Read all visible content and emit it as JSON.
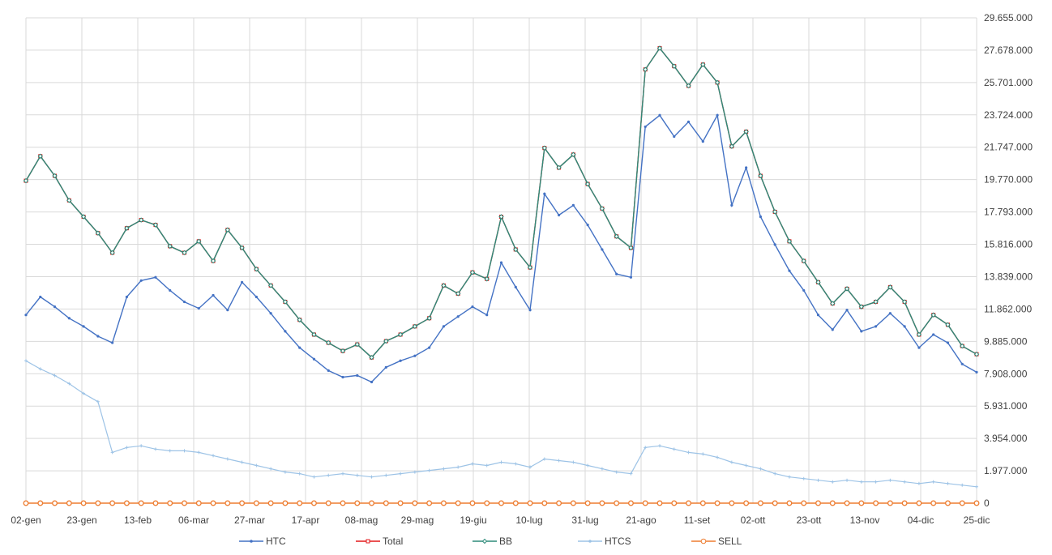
{
  "chart_data": {
    "type": "line",
    "title": "",
    "xlabel": "",
    "ylabel": "",
    "ylim": [
      0,
      29655000
    ],
    "y_axis_position": "right",
    "y_ticks": [
      0,
      1977000,
      3954000,
      5931000,
      7908000,
      9885000,
      11862000,
      13839000,
      15816000,
      17793000,
      19770000,
      21747000,
      23724000,
      25701000,
      27678000,
      29655000
    ],
    "y_tick_labels": [
      "0",
      "1.977.000",
      "3.954.000",
      "5.931.000",
      "7.908.000",
      "9.885.000",
      "11.862.000",
      "13.839.000",
      "15.816.000",
      "17.793.000",
      "19.770.000",
      "21.747.000",
      "23.724.000",
      "25.701.000",
      "27.678.000",
      "29.655.000"
    ],
    "x_tick_labels": [
      "02-gen",
      "23-gen",
      "13-feb",
      "06-mar",
      "27-mar",
      "17-apr",
      "08-mag",
      "29-mag",
      "19-giu",
      "10-lug",
      "31-lug",
      "21-ago",
      "11-set",
      "02-ott",
      "23-ott",
      "13-nov",
      "04-dic",
      "25-dic"
    ],
    "grid": true,
    "legend_position": "bottom",
    "colors": {
      "HTC": "#4472C4",
      "Total": "#E31A1C",
      "BB": "#2E8B7A",
      "HTCS": "#9DC3E6",
      "SELL": "#ED7D31",
      "grid": "#d9d9d9"
    },
    "series": [
      {
        "name": "HTC",
        "color": "#4472C4",
        "values": [
          11500000,
          12600000,
          12000000,
          11300000,
          10800000,
          10200000,
          9800000,
          12600000,
          13600000,
          13800000,
          13000000,
          12300000,
          11900000,
          12700000,
          11800000,
          13500000,
          12600000,
          11600000,
          10500000,
          9500000,
          8800000,
          8100000,
          7700000,
          7800000,
          7400000,
          8300000,
          8700000,
          9000000,
          9500000,
          10800000,
          11400000,
          12000000,
          11500000,
          14700000,
          13200000,
          11800000,
          18900000,
          17600000,
          18200000,
          17000000,
          15500000,
          14000000,
          13800000,
          23000000,
          23700000,
          22400000,
          23300000,
          22100000,
          23700000,
          18200000,
          20500000,
          17500000,
          15800000,
          14200000,
          13000000,
          11500000,
          10600000,
          11800000,
          10500000,
          10800000,
          11600000,
          10800000,
          9500000,
          10300000,
          9800000,
          8500000,
          8000000
        ]
      },
      {
        "name": "Total",
        "color": "#E31A1C",
        "values": [
          19700000,
          21200000,
          20000000,
          18500000,
          17500000,
          16500000,
          15300000,
          16800000,
          17300000,
          17000000,
          15700000,
          15300000,
          16000000,
          14800000,
          16700000,
          15600000,
          14300000,
          13300000,
          12300000,
          11200000,
          10300000,
          9800000,
          9300000,
          9700000,
          8900000,
          9900000,
          10300000,
          10800000,
          11300000,
          13300000,
          12800000,
          14100000,
          13700000,
          17500000,
          15500000,
          14400000,
          21700000,
          20500000,
          21300000,
          19500000,
          18000000,
          16300000,
          15600000,
          26500000,
          27800000,
          26700000,
          25500000,
          26800000,
          25700000,
          21800000,
          22700000,
          20000000,
          17800000,
          16000000,
          14800000,
          13500000,
          12200000,
          13100000,
          12000000,
          12300000,
          13200000,
          12300000,
          10300000,
          11500000,
          10900000,
          9600000,
          9100000
        ]
      },
      {
        "name": "BB",
        "color": "#2E8B7A",
        "values": [
          19700000,
          21200000,
          20000000,
          18500000,
          17500000,
          16500000,
          15300000,
          16800000,
          17300000,
          17000000,
          15700000,
          15300000,
          16000000,
          14800000,
          16700000,
          15600000,
          14300000,
          13300000,
          12300000,
          11200000,
          10300000,
          9800000,
          9300000,
          9700000,
          8900000,
          9900000,
          10300000,
          10800000,
          11300000,
          13300000,
          12800000,
          14100000,
          13700000,
          17500000,
          15500000,
          14400000,
          21700000,
          20500000,
          21300000,
          19500000,
          18000000,
          16300000,
          15600000,
          26500000,
          27800000,
          26700000,
          25500000,
          26800000,
          25700000,
          21800000,
          22700000,
          20000000,
          17800000,
          16000000,
          14800000,
          13500000,
          12200000,
          13100000,
          12000000,
          12300000,
          13200000,
          12300000,
          10300000,
          11500000,
          10900000,
          9600000,
          9100000
        ]
      },
      {
        "name": "HTCS",
        "color": "#9DC3E6",
        "values": [
          8700000,
          8200000,
          7800000,
          7300000,
          6700000,
          6200000,
          3100000,
          3400000,
          3500000,
          3300000,
          3200000,
          3200000,
          3100000,
          2900000,
          2700000,
          2500000,
          2300000,
          2100000,
          1900000,
          1800000,
          1600000,
          1700000,
          1800000,
          1700000,
          1600000,
          1700000,
          1800000,
          1900000,
          2000000,
          2100000,
          2200000,
          2400000,
          2300000,
          2500000,
          2400000,
          2200000,
          2700000,
          2600000,
          2500000,
          2300000,
          2100000,
          1900000,
          1800000,
          3400000,
          3500000,
          3300000,
          3100000,
          3000000,
          2800000,
          2500000,
          2300000,
          2100000,
          1800000,
          1600000,
          1500000,
          1400000,
          1300000,
          1400000,
          1300000,
          1300000,
          1400000,
          1300000,
          1200000,
          1300000,
          1200000,
          1100000,
          1000000
        ]
      },
      {
        "name": "SELL",
        "color": "#ED7D31",
        "values": [
          0,
          0,
          0,
          0,
          0,
          0,
          0,
          0,
          0,
          0,
          0,
          0,
          0,
          0,
          0,
          0,
          0,
          0,
          0,
          0,
          0,
          0,
          0,
          0,
          0,
          0,
          0,
          0,
          0,
          0,
          0,
          0,
          0,
          0,
          0,
          0,
          0,
          0,
          0,
          0,
          0,
          0,
          0,
          0,
          0,
          0,
          0,
          0,
          0,
          0,
          0,
          0,
          0,
          0,
          0,
          0,
          0,
          0,
          0,
          0,
          0,
          0,
          0,
          0,
          0,
          0,
          0
        ]
      }
    ]
  }
}
